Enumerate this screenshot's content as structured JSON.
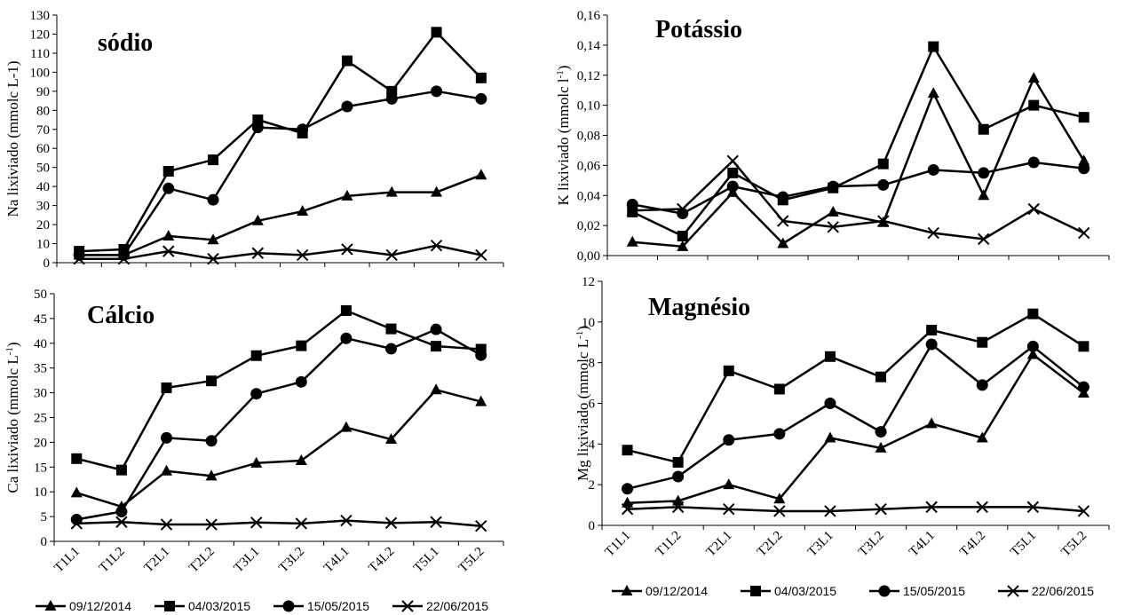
{
  "chart_data": [
    {
      "type": "line",
      "title": "sódio",
      "ylabel": "Na lixiviado  (mmolc L-1)",
      "ylim": [
        0,
        130
      ],
      "yticks": [
        "0",
        "10",
        "20",
        "30",
        "40",
        "50",
        "60",
        "70",
        "80",
        "90",
        "100",
        "110",
        "120",
        "130"
      ],
      "categories": [
        "T1L1",
        "T1L2",
        "T2L1",
        "T2L2",
        "T3L1",
        "T3L2",
        "T4L1",
        "T4L2",
        "T5L1",
        "T5L2"
      ],
      "series": [
        {
          "name": "09/12/2014",
          "marker": "triangle",
          "values": [
            4,
            4,
            14,
            12,
            22,
            27,
            35,
            37,
            37,
            46
          ]
        },
        {
          "name": "04/03/2015",
          "marker": "square",
          "values": [
            6,
            7,
            48,
            54,
            75,
            68,
            106,
            90,
            121,
            97
          ]
        },
        {
          "name": "15/05/2015",
          "marker": "circle",
          "values": [
            4,
            4,
            39,
            33,
            71,
            70,
            82,
            86,
            90,
            86
          ]
        },
        {
          "name": "22/06/2015",
          "marker": "x",
          "values": [
            2,
            2,
            6,
            2,
            5,
            4,
            7,
            4,
            9,
            4
          ]
        }
      ]
    },
    {
      "type": "line",
      "title": "Potássio",
      "ylabel": "K lixiviado  (mmolc l",
      "ylabel_sup": "-1",
      "ylabel_end": ")",
      "ylim": [
        0,
        0.16
      ],
      "yticks": [
        "0,00",
        "0,02",
        "0,04",
        "0,06",
        "0,08",
        "0,10",
        "0,12",
        "0,14",
        "0,16"
      ],
      "categories": [
        "T1L1",
        "T1L2",
        "T2L1",
        "T2L2",
        "T3L1",
        "T3L2",
        "T4L1",
        "T4L2",
        "T5L1",
        "T5L2"
      ],
      "series": [
        {
          "name": "09/12/2014",
          "marker": "triangle",
          "values": [
            0.009,
            0.006,
            0.042,
            0.008,
            0.029,
            0.022,
            0.108,
            0.04,
            0.118,
            0.063
          ]
        },
        {
          "name": "04/03/2015",
          "marker": "square",
          "values": [
            0.029,
            0.013,
            0.055,
            0.037,
            0.045,
            0.061,
            0.139,
            0.084,
            0.1,
            0.092
          ]
        },
        {
          "name": "15/05/2015",
          "marker": "circle",
          "values": [
            0.034,
            0.028,
            0.046,
            0.039,
            0.046,
            0.047,
            0.057,
            0.055,
            0.062,
            0.058
          ]
        },
        {
          "name": "22/06/2015",
          "marker": "x",
          "values": [
            0.03,
            0.031,
            0.063,
            0.023,
            0.019,
            0.023,
            0.015,
            0.011,
            0.031,
            0.015
          ]
        }
      ]
    },
    {
      "type": "line",
      "title": "Cálcio",
      "ylabel": "Ca lixiviado  (mmolc L",
      "ylabel_sup": "-1",
      "ylabel_end": ")",
      "ylim": [
        0,
        50
      ],
      "yticks": [
        "0",
        "5",
        "10",
        "15",
        "20",
        "25",
        "30",
        "35",
        "40",
        "45",
        "50"
      ],
      "categories": [
        "T1L1",
        "T1L2",
        "T2L1",
        "T2L2",
        "T3L1",
        "T3L2",
        "T4L1",
        "T4L2",
        "T5L1",
        "T5L2"
      ],
      "series": [
        {
          "name": "09/12/2014",
          "marker": "triangle",
          "values": [
            9.8,
            7.0,
            14.2,
            13.2,
            15.8,
            16.3,
            23.0,
            20.6,
            30.6,
            28.2
          ]
        },
        {
          "name": "04/03/2015",
          "marker": "square",
          "values": [
            16.7,
            14.4,
            31.0,
            32.4,
            37.5,
            39.5,
            46.6,
            42.9,
            39.4,
            38.8
          ]
        },
        {
          "name": "15/05/2015",
          "marker": "circle",
          "values": [
            4.4,
            6.0,
            20.9,
            20.3,
            29.8,
            32.2,
            41.0,
            38.9,
            42.8,
            37.6
          ]
        },
        {
          "name": "22/06/2015",
          "marker": "x",
          "values": [
            3.6,
            3.9,
            3.4,
            3.4,
            3.8,
            3.6,
            4.2,
            3.7,
            3.9,
            3.1
          ]
        }
      ]
    },
    {
      "type": "line",
      "title": "Magnésio",
      "ylabel": "Mg lixiviado (mmolc L",
      "ylabel_sup": "-1",
      "ylabel_end": ")",
      "ylim": [
        0,
        12
      ],
      "yticks": [
        "0",
        "2",
        "4",
        "6",
        "8",
        "10",
        "12"
      ],
      "categories": [
        "T1L1",
        "T1L2",
        "T2L1",
        "T2L2",
        "T3L1",
        "T3L2",
        "T4L1",
        "T4L2",
        "T5L1",
        "T5L2"
      ],
      "series": [
        {
          "name": "09/12/2014",
          "marker": "triangle",
          "values": [
            1.1,
            1.2,
            2.0,
            1.3,
            4.3,
            3.8,
            5.0,
            4.3,
            8.4,
            6.5
          ]
        },
        {
          "name": "04/03/2015",
          "marker": "square",
          "values": [
            3.7,
            3.1,
            7.6,
            6.7,
            8.3,
            7.3,
            9.6,
            9.0,
            10.4,
            8.8
          ]
        },
        {
          "name": "15/05/2015",
          "marker": "circle",
          "values": [
            1.8,
            2.4,
            4.2,
            4.5,
            6.0,
            4.6,
            8.9,
            6.9,
            8.8,
            6.8
          ]
        },
        {
          "name": "22/06/2015",
          "marker": "x",
          "values": [
            0.8,
            0.9,
            0.8,
            0.7,
            0.7,
            0.8,
            0.9,
            0.9,
            0.9,
            0.7
          ]
        }
      ]
    }
  ],
  "legend_left": {
    "items": [
      {
        "label": "09/12/2014",
        "marker": "triangle"
      },
      {
        "label": "04/03/2015",
        "marker": "square"
      },
      {
        "label": "15/05/2015",
        "marker": "circle"
      },
      {
        "label": "22/06/2015",
        "marker": "x"
      }
    ]
  },
  "legend_right": {
    "items": [
      {
        "label": "09/12/2014",
        "marker": "triangle"
      },
      {
        "label": "04/03/2015",
        "marker": "square"
      },
      {
        "label": "15/05/2015",
        "marker": "circle"
      },
      {
        "label": "22/06/2015",
        "marker": "x"
      }
    ]
  }
}
